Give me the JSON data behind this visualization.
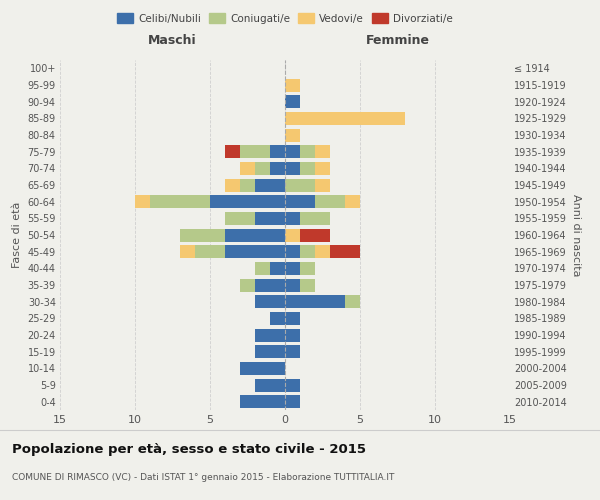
{
  "age_groups": [
    "0-4",
    "5-9",
    "10-14",
    "15-19",
    "20-24",
    "25-29",
    "30-34",
    "35-39",
    "40-44",
    "45-49",
    "50-54",
    "55-59",
    "60-64",
    "65-69",
    "70-74",
    "75-79",
    "80-84",
    "85-89",
    "90-94",
    "95-99",
    "100+"
  ],
  "birth_years": [
    "2010-2014",
    "2005-2009",
    "2000-2004",
    "1995-1999",
    "1990-1994",
    "1985-1989",
    "1980-1984",
    "1975-1979",
    "1970-1974",
    "1965-1969",
    "1960-1964",
    "1955-1959",
    "1950-1954",
    "1945-1949",
    "1940-1944",
    "1935-1939",
    "1930-1934",
    "1925-1929",
    "1920-1924",
    "1915-1919",
    "≤ 1914"
  ],
  "maschi": {
    "celibi": [
      3,
      2,
      3,
      2,
      2,
      1,
      2,
      2,
      1,
      4,
      4,
      2,
      5,
      2,
      1,
      1,
      0,
      0,
      0,
      0,
      0
    ],
    "coniugati": [
      0,
      0,
      0,
      0,
      0,
      0,
      0,
      1,
      1,
      2,
      3,
      2,
      4,
      1,
      1,
      2,
      0,
      0,
      0,
      0,
      0
    ],
    "vedovi": [
      0,
      0,
      0,
      0,
      0,
      0,
      0,
      0,
      0,
      1,
      0,
      0,
      1,
      1,
      1,
      0,
      0,
      0,
      0,
      0,
      0
    ],
    "divorziati": [
      0,
      0,
      0,
      0,
      0,
      0,
      0,
      0,
      0,
      0,
      0,
      0,
      0,
      0,
      0,
      1,
      0,
      0,
      0,
      0,
      0
    ]
  },
  "femmine": {
    "nubili": [
      1,
      1,
      0,
      1,
      1,
      1,
      4,
      1,
      1,
      1,
      0,
      1,
      2,
      0,
      1,
      1,
      0,
      0,
      1,
      0,
      0
    ],
    "coniugate": [
      0,
      0,
      0,
      0,
      0,
      0,
      1,
      1,
      1,
      1,
      0,
      2,
      2,
      2,
      1,
      1,
      0,
      0,
      0,
      0,
      0
    ],
    "vedove": [
      0,
      0,
      0,
      0,
      0,
      0,
      0,
      0,
      0,
      1,
      1,
      0,
      1,
      1,
      1,
      1,
      1,
      8,
      0,
      1,
      0
    ],
    "divorziate": [
      0,
      0,
      0,
      0,
      0,
      0,
      0,
      0,
      0,
      2,
      2,
      0,
      0,
      0,
      0,
      0,
      0,
      0,
      0,
      0,
      0
    ]
  },
  "colors": {
    "celibi_nubili": "#3d6faa",
    "coniugati": "#b5c98a",
    "vedovi": "#f5c870",
    "divorziati": "#c0392b"
  },
  "xlim": 15,
  "title": "Popolazione per età, sesso e stato civile - 2015",
  "subtitle": "COMUNE DI RIMASCO (VC) - Dati ISTAT 1° gennaio 2015 - Elaborazione TUTTITALIA.IT",
  "ylabel_left": "Fasce di età",
  "ylabel_right": "Anni di nascita",
  "maschi_label": "Maschi",
  "femmine_label": "Femmine",
  "bg_color": "#f0f0eb",
  "grid_color": "#cccccc"
}
